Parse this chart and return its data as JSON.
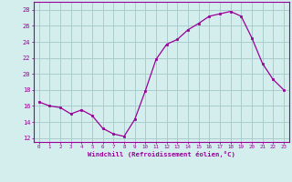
{
  "x": [
    0,
    1,
    2,
    3,
    4,
    5,
    6,
    7,
    8,
    9,
    10,
    11,
    12,
    13,
    14,
    15,
    16,
    17,
    18,
    19,
    20,
    21,
    22,
    23
  ],
  "y": [
    16.5,
    16.0,
    15.8,
    15.0,
    15.5,
    14.8,
    13.2,
    12.5,
    12.2,
    14.3,
    17.9,
    21.8,
    23.7,
    24.3,
    25.5,
    26.3,
    27.2,
    27.5,
    27.8,
    27.2,
    24.5,
    21.3,
    19.3,
    18.0
  ],
  "line_color": "#990099",
  "marker_color": "#990099",
  "bg_color": "#d4eeee",
  "grid_color": "#aacccc",
  "xlabel": "Windchill (Refroidissement éolien,°C)",
  "ylabel_ticks": [
    12,
    14,
    16,
    18,
    20,
    22,
    24,
    26,
    28
  ],
  "xlim": [
    -0.5,
    23.5
  ],
  "ylim": [
    11.5,
    29.0
  ],
  "axis_color": "#990099",
  "tick_color": "#990099",
  "label_color": "#990099"
}
